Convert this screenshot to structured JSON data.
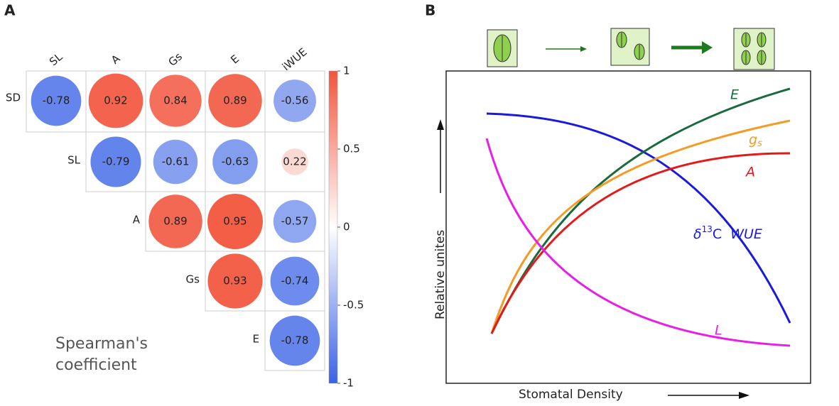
{
  "panel_labels": [
    "A",
    "B"
  ],
  "chart_data": {
    "type": "correlogram",
    "rows": [
      "SD",
      "SL",
      "A",
      "Gs",
      "E"
    ],
    "columns": [
      "SL",
      "A",
      "Gs",
      "E",
      "iWUE"
    ],
    "values": [
      [
        -0.78,
        0.92,
        0.84,
        0.89,
        -0.56
      ],
      [
        null,
        -0.79,
        -0.61,
        -0.63,
        0.22
      ],
      [
        null,
        null,
        0.89,
        0.95,
        -0.57
      ],
      [
        null,
        null,
        null,
        0.93,
        -0.74
      ],
      [
        null,
        null,
        null,
        null,
        -0.78
      ]
    ],
    "colorbar_lim": [
      -1,
      1
    ],
    "colorbar_ticks": [
      -1,
      -0.5,
      0,
      0.5,
      1
    ],
    "colors": [
      "#3a63e6",
      "#ffffff",
      "#f2553d"
    ],
    "legend_title": "Spearman's coefficient"
  },
  "diagram": {
    "x_label": "Stomatal Density",
    "y_label": "Relative unites",
    "curve_labels": {
      "E": "E",
      "gs": {
        "main": "g",
        "sub": "s"
      },
      "A": "A",
      "wue": {
        "main": "δ",
        "sup": "13",
        "rest": "C",
        "tail": "WUE"
      },
      "L": "L"
    }
  }
}
